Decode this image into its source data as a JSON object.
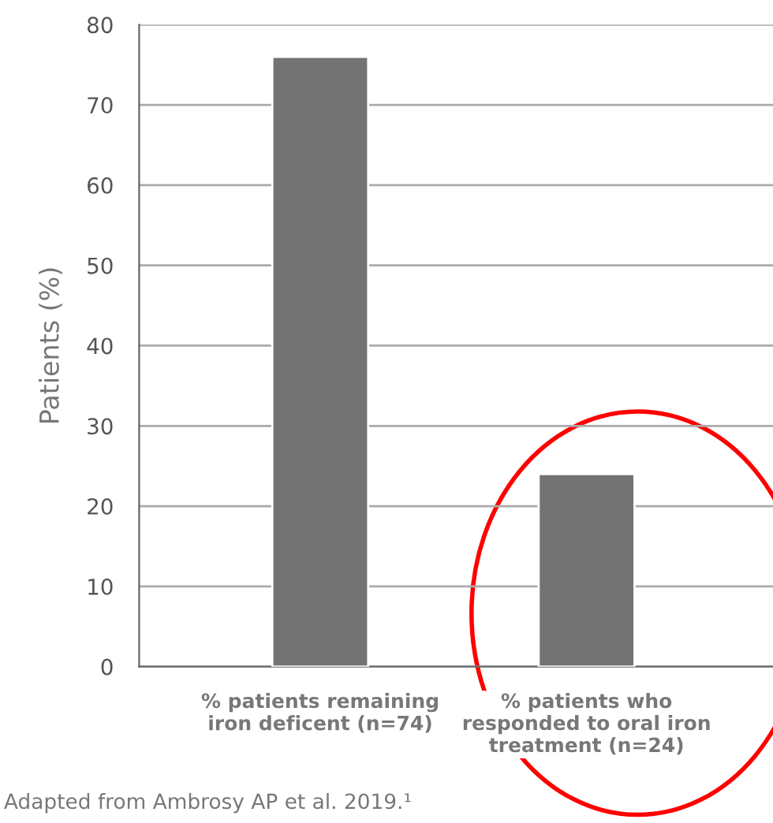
{
  "chart_data": {
    "type": "bar",
    "ylabel": "Patients (%)",
    "categories": [
      "% patients remaining\niron deficent (n=74)",
      "% patients who\nresponded to oral iron\ntreatment (n=24)"
    ],
    "values": [
      76,
      24
    ],
    "color": "#737373",
    "ylim": [
      0,
      80
    ],
    "yticks": [
      0,
      10,
      20,
      30,
      40,
      50,
      60,
      70,
      80
    ],
    "grid": "y",
    "annotations": [
      "Adapted from Ambrosy AP et al. 2019.¹"
    ]
  }
}
